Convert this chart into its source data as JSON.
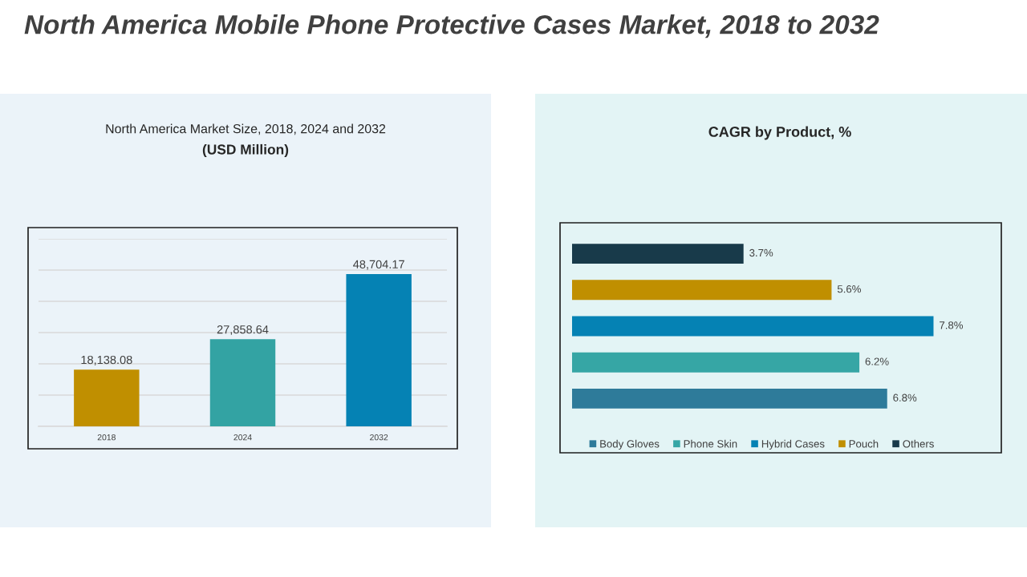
{
  "chart_data": [
    {
      "type": "bar",
      "title": "North America Market Size, 2018, 2024 and 2032",
      "subtitle": "(USD Million)",
      "annotations": [
        "North America Mobile Phone Protective Cases Market, 2018 to 2032"
      ],
      "categories": [
        "2018",
        "2024",
        "2032"
      ],
      "values": [
        18138.08,
        27858.64,
        48704.17
      ],
      "colors": [
        "#c08f00",
        "#33a3a3",
        "#0582b4"
      ],
      "value_labels": [
        "18,138.08",
        "27,858.64",
        "48,704.17"
      ],
      "ylim": [
        0,
        60000
      ],
      "yticks": [
        {
          "value": 0,
          "label": null
        },
        {
          "value": 10000,
          "label": null
        },
        {
          "value": 20000,
          "label": null
        },
        {
          "value": 30000,
          "label": null
        },
        {
          "value": 40000,
          "label": null
        },
        {
          "value": 50000,
          "label": null
        },
        {
          "value": 60000,
          "label": null
        }
      ],
      "grid": "y",
      "tick_labels": "x"
    },
    {
      "type": "bar",
      "orientation": "horizontal",
      "stacked": true,
      "title": "CAGR by Product, %",
      "categories": [
        null,
        null,
        null,
        null,
        null
      ],
      "series": [
        {
          "name": "Body Gloves",
          "color": "#2e7b9a",
          "values": [
            null,
            null,
            null,
            null,
            6.8
          ],
          "value_labels": [
            null,
            null,
            null,
            null,
            "6.8%"
          ]
        },
        {
          "name": "Phone Skin",
          "color": "#36a6a5",
          "values": [
            null,
            null,
            null,
            6.2,
            null
          ],
          "value_labels": [
            null,
            null,
            null,
            "6.2%",
            null
          ]
        },
        {
          "name": "Hybrid Cases",
          "color": "#0582b4",
          "values": [
            null,
            null,
            7.8,
            null,
            null
          ],
          "value_labels": [
            null,
            null,
            "7.8%",
            null,
            null
          ]
        },
        {
          "name": "Pouch",
          "color": "#c08f00",
          "values": [
            null,
            5.6,
            null,
            null,
            null
          ],
          "value_labels": [
            null,
            "5.6%",
            null,
            null,
            null
          ]
        },
        {
          "name": "Others",
          "color": "#183a4a",
          "values": [
            3.7,
            null,
            null,
            null,
            null
          ],
          "value_labels": [
            "3.7%",
            null,
            null,
            null,
            null
          ]
        }
      ],
      "tick_labels": false,
      "legend": "bottom"
    }
  ]
}
